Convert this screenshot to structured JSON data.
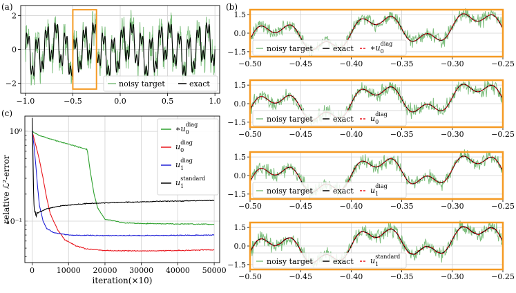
{
  "panel_labels": {
    "a": "(a)",
    "b": "(b)",
    "c": "(c)"
  },
  "colors": {
    "noisy": "#7fbf7f",
    "exact": "#000000",
    "fit": "#e8141b",
    "highlight": "#f59a23",
    "c_star": "#2ca02c",
    "c_u0": "#e8141b",
    "c_u1": "#1f1fd6",
    "c_std": "#000000"
  },
  "chart_data": [
    {
      "id": "a",
      "type": "line",
      "title": "",
      "xlim": [
        -1.05,
        1.05
      ],
      "ylim": [
        -2.6,
        2.6
      ],
      "x_ticks": [
        -1.0,
        -0.5,
        0.0,
        0.5,
        1.0
      ],
      "x_tick_labels": [
        "−1.0",
        "−0.5",
        "0.0",
        "0.5",
        "1.0"
      ],
      "y_ticks": [
        2,
        0,
        -2
      ],
      "y_tick_labels": [
        "2",
        "0",
        "−2"
      ],
      "grid": true,
      "highlight_range": [
        -0.5,
        -0.25
      ],
      "legend": {
        "placement": "lower-right",
        "entries": [
          "noisy target",
          "exact"
        ]
      },
      "series": [
        {
          "name": "noisy target",
          "noise_amplitude": 0.75
        },
        {
          "name": "exact",
          "formula": "sin(20πx)+0.5·sin(60πx)+0.5·sin(5πx)"
        }
      ]
    },
    {
      "id": "b",
      "type": "line",
      "subplots": 4,
      "xlim": [
        -0.5,
        -0.25
      ],
      "ylim": [
        -1.9,
        1.9
      ],
      "x_ticks": [
        -0.5,
        -0.45,
        -0.4,
        -0.35,
        -0.3,
        -0.25
      ],
      "x_tick_labels": [
        "−0.50",
        "−0.45",
        "−0.40",
        "−0.35",
        "−0.30",
        "−0.25"
      ],
      "y_ticks": [
        1.5,
        0,
        -1.5
      ],
      "y_tick_labels": [
        "1.5",
        "0.0",
        "−1.5"
      ],
      "grid": true,
      "legend_common": [
        "noisy target",
        "exact"
      ],
      "legend_fits": [
        {
          "base": "∗u",
          "sub": "0",
          "sup": "diag"
        },
        {
          "base": "u",
          "sub": "0",
          "sup": "diag"
        },
        {
          "base": "u",
          "sub": "1",
          "sup": "diag"
        },
        {
          "base": "u",
          "sub": "1",
          "sup": "standard"
        }
      ]
    },
    {
      "id": "c",
      "type": "line",
      "yscale": "log",
      "xlabel": "iteration(×10)",
      "ylabel": "relative ℒ²-error",
      "xlim": [
        -2000,
        51500
      ],
      "ylim": [
        0.0345,
        1.48
      ],
      "x_ticks": [
        0,
        10000,
        20000,
        30000,
        40000,
        50000
      ],
      "x_tick_labels": [
        "0",
        "10000",
        "20000",
        "30000",
        "40000",
        "50000"
      ],
      "y_ticks": [
        1.0,
        0.1
      ],
      "y_tick_labels": [
        "10⁰",
        "10⁻¹"
      ],
      "grid": true,
      "legend": {
        "placement": "upper-right"
      },
      "series": [
        {
          "name": "∗u0 diag",
          "legend": {
            "base": "∗u",
            "sub": "0",
            "sup": "diag"
          },
          "points": [
            [
              0,
              1.0
            ],
            [
              2000,
              0.9
            ],
            [
              6000,
              0.8
            ],
            [
              10000,
              0.72
            ],
            [
              15000,
              0.63
            ],
            [
              15200,
              0.6
            ],
            [
              16000,
              0.35
            ],
            [
              17000,
              0.2
            ],
            [
              18000,
              0.14
            ],
            [
              20000,
              0.105
            ],
            [
              25000,
              0.096
            ],
            [
              30000,
              0.094
            ],
            [
              40000,
              0.093
            ],
            [
              50000,
              0.092
            ]
          ]
        },
        {
          "name": "u0 diag",
          "legend": {
            "base": "u",
            "sub": "0",
            "sup": "diag"
          },
          "points": [
            [
              0,
              1.0
            ],
            [
              1000,
              0.7
            ],
            [
              2000,
              0.48
            ],
            [
              3000,
              0.3
            ],
            [
              4000,
              0.18
            ],
            [
              5000,
              0.12
            ],
            [
              7000,
              0.08
            ],
            [
              9000,
              0.062
            ],
            [
              12000,
              0.053
            ],
            [
              15000,
              0.049
            ],
            [
              20000,
              0.047
            ],
            [
              30000,
              0.0465
            ],
            [
              40000,
              0.047
            ],
            [
              50000,
              0.048
            ]
          ]
        },
        {
          "name": "u1 diag",
          "legend": {
            "base": "u",
            "sub": "1",
            "sup": "diag"
          },
          "points": [
            [
              0,
              1.0
            ],
            [
              500,
              0.7
            ],
            [
              1000,
              0.42
            ],
            [
              1500,
              0.24
            ],
            [
              2000,
              0.15
            ],
            [
              3000,
              0.1
            ],
            [
              4000,
              0.083
            ],
            [
              6000,
              0.074
            ],
            [
              10000,
              0.07
            ],
            [
              20000,
              0.069
            ],
            [
              30000,
              0.069
            ],
            [
              40000,
              0.0695
            ],
            [
              50000,
              0.07
            ]
          ]
        },
        {
          "name": "u1 standard",
          "legend": {
            "base": "u",
            "sub": "1",
            "sup": "standard"
          },
          "points": [
            [
              0,
              1.35
            ],
            [
              200,
              0.6
            ],
            [
              400,
              0.2
            ],
            [
              600,
              0.13
            ],
            [
              1000,
              0.12
            ],
            [
              2000,
              0.126
            ],
            [
              4000,
              0.137
            ],
            [
              8000,
              0.148
            ],
            [
              15000,
              0.157
            ],
            [
              25000,
              0.162
            ],
            [
              35000,
              0.166
            ],
            [
              50000,
              0.17
            ]
          ]
        }
      ]
    }
  ]
}
